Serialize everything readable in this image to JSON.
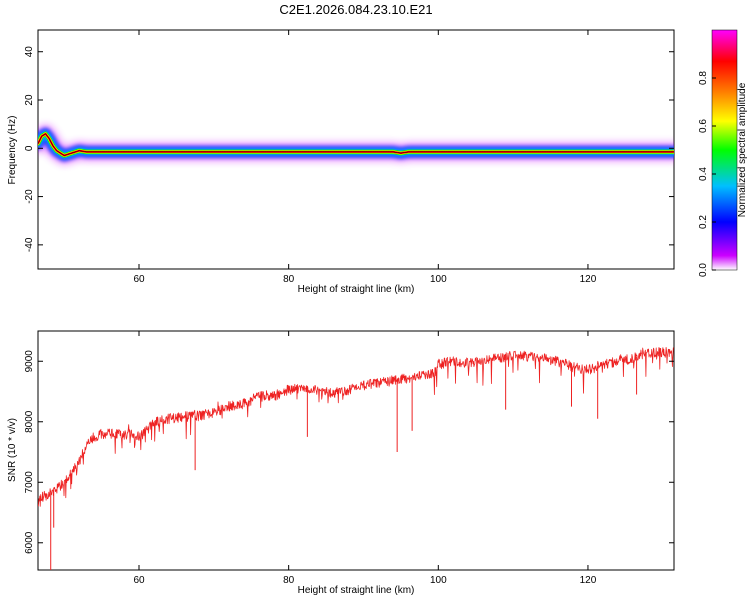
{
  "title": "C2E1.2026.084.23.10.E21",
  "chart_data": [
    {
      "type": "heatmap",
      "xlabel": "Height of straight line (km)",
      "ylabel": "Frequency (Hz)",
      "xlim": [
        46.5,
        131.5
      ],
      "ylim": [
        -50,
        49
      ],
      "xticks": [
        60,
        80,
        100,
        120
      ],
      "yticks": [
        40,
        20,
        0,
        -20,
        -40
      ],
      "grid": false,
      "ridge": {
        "x": [
          46.5,
          47,
          47.5,
          48,
          48.5,
          49,
          50,
          51,
          52,
          53,
          55,
          60,
          70,
          80,
          90,
          94,
          95,
          96,
          100,
          110,
          120,
          131
        ],
        "y": [
          2,
          5,
          6,
          4,
          1,
          -1,
          -3,
          -2,
          -1,
          -1.5,
          -1.5,
          -1.5,
          -1.5,
          -1.5,
          -1.5,
          -1.5,
          -2,
          -1.5,
          -1.5,
          -1.5,
          -1.5,
          -1.5
        ]
      },
      "colorbar": {
        "label": "Normalized spectral amplitude",
        "range": [
          0,
          1
        ],
        "ticks": [
          0.0,
          0.2,
          0.4,
          0.6,
          0.8
        ],
        "colors": [
          "#ffffff",
          "#cc00ff",
          "#0000ff",
          "#00c0ff",
          "#00ff00",
          "#ffff00",
          "#ff8000",
          "#ff0000",
          "#ff00ff"
        ]
      }
    },
    {
      "type": "line",
      "xlabel": "Height of straight line (km)",
      "ylabel": "SNR (10 * v/v)",
      "xlim": [
        46.5,
        131.5
      ],
      "ylim": [
        5550,
        9500
      ],
      "xticks": [
        60,
        80,
        100,
        120
      ],
      "yticks": [
        6000,
        7000,
        8000,
        9000
      ],
      "grid": false,
      "series": [
        {
          "color": "#ee2222",
          "trend": {
            "x": [
              46.5,
              47,
              48,
              49,
              50,
              51,
              52,
              53,
              54,
              55,
              56,
              57,
              58,
              59,
              60,
              62,
              64,
              66,
              68,
              70,
              72,
              74,
              76,
              78,
              80,
              82,
              84,
              86,
              88,
              90,
              92,
              94,
              96,
              98,
              99.5,
              100,
              102,
              104,
              106,
              108,
              110,
              112,
              114,
              116,
              118,
              120,
              122,
              124,
              126,
              128,
              130,
              131.5
            ],
            "y": [
              6700,
              6750,
              6800,
              6900,
              7000,
              7150,
              7350,
              7600,
              7750,
              7800,
              7800,
              7800,
              7780,
              7800,
              7750,
              7980,
              8050,
              8080,
              8100,
              8150,
              8250,
              8300,
              8420,
              8420,
              8530,
              8550,
              8500,
              8470,
              8520,
              8600,
              8650,
              8680,
              8720,
              8780,
              8800,
              8950,
              9000,
              8980,
              9000,
              9050,
              9100,
              9080,
              9050,
              9000,
              8900,
              8850,
              8950,
              9000,
              9050,
              9150,
              9150,
              9150
            ]
          },
          "spikes": [
            {
              "x": 48.2,
              "y": 5550
            },
            {
              "x": 48.6,
              "y": 6250
            },
            {
              "x": 67.5,
              "y": 7200
            },
            {
              "x": 82.5,
              "y": 7750
            },
            {
              "x": 94.5,
              "y": 7500
            },
            {
              "x": 96.5,
              "y": 7850
            },
            {
              "x": 109.0,
              "y": 8200
            },
            {
              "x": 117.8,
              "y": 8250
            },
            {
              "x": 121.3,
              "y": 8050
            },
            {
              "x": 126.5,
              "y": 8450
            }
          ]
        }
      ]
    }
  ]
}
